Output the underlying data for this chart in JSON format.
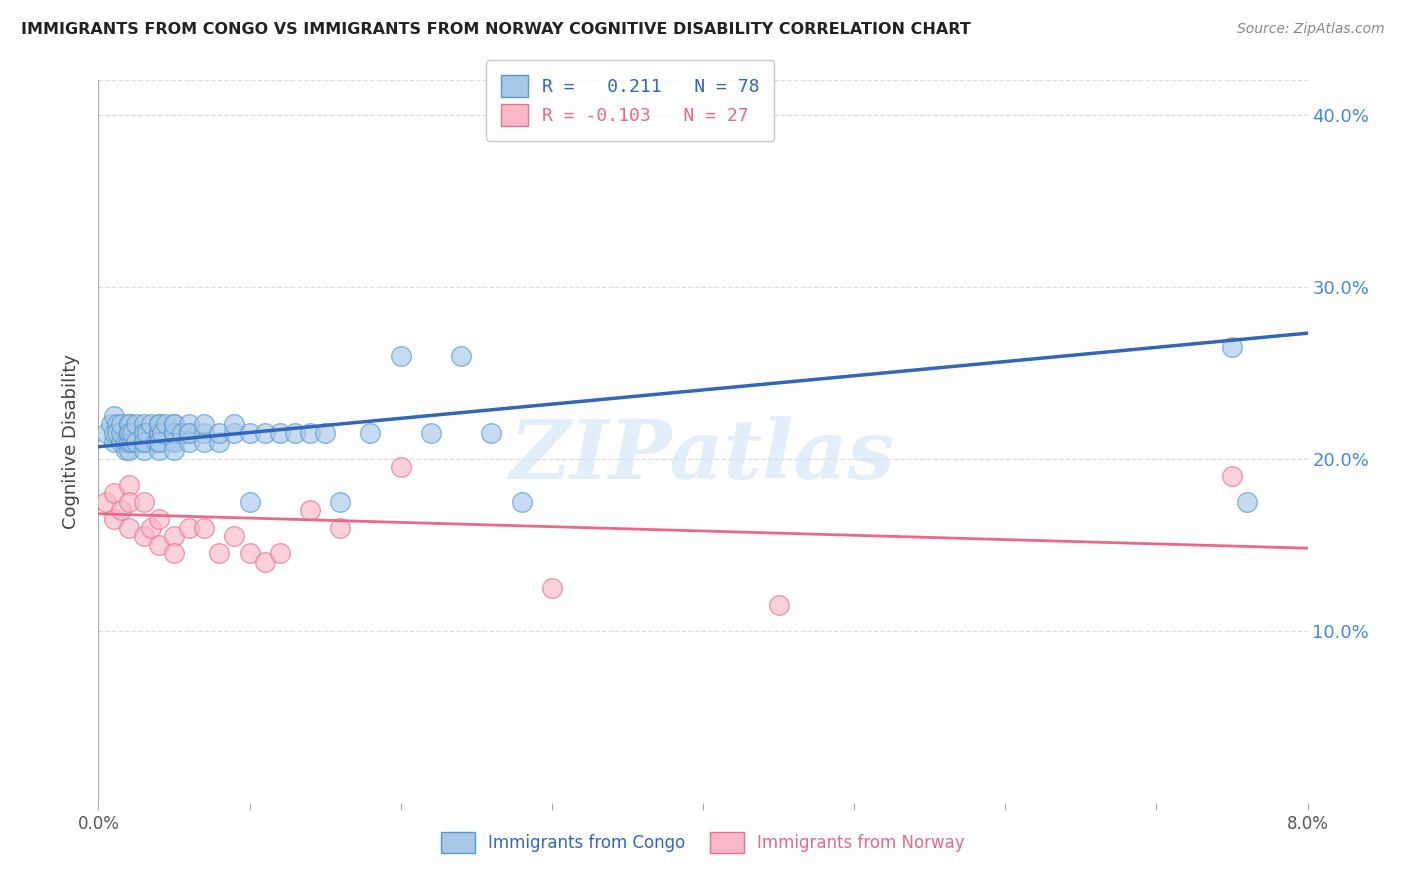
{
  "title": "IMMIGRANTS FROM CONGO VS IMMIGRANTS FROM NORWAY COGNITIVE DISABILITY CORRELATION CHART",
  "source": "Source: ZipAtlas.com",
  "ylabel": "Cognitive Disability",
  "x_min": 0.0,
  "x_max": 0.08,
  "y_min": 0.0,
  "y_max": 0.42,
  "x_ticks": [
    0.0,
    0.01,
    0.02,
    0.03,
    0.04,
    0.05,
    0.06,
    0.07,
    0.08
  ],
  "x_tick_labels_show": [
    "0.0%",
    "",
    "",
    "",
    "",
    "",
    "",
    "",
    "8.0%"
  ],
  "y_ticks_right": [
    0.1,
    0.2,
    0.3,
    0.4
  ],
  "y_tick_labels_right": [
    "10.0%",
    "20.0%",
    "30.0%",
    "40.0%"
  ],
  "congo_fill_color": "#a8c8e8",
  "congo_edge_color": "#5599cc",
  "norway_fill_color": "#f8b8c8",
  "norway_edge_color": "#e87090",
  "congo_line_color": "#3366bb",
  "norway_line_color": "#ee6688",
  "grid_color": "#dddddd",
  "background_color": "#ffffff",
  "right_tick_color": "#4488dd",
  "legend_line1": "R =   0.211   N = 78",
  "legend_line2": "R = -0.103   N = 27",
  "label_congo": "Immigrants from Congo",
  "label_norway": "Immigrants from Norway",
  "watermark": "ZIPatlas",
  "congo_line_x0": 0.0,
  "congo_line_y0": 0.207,
  "congo_line_x1": 0.08,
  "congo_line_y1": 0.273,
  "norway_line_x0": 0.0,
  "norway_line_y0": 0.168,
  "norway_line_x1": 0.08,
  "norway_line_y1": 0.148,
  "congo_x": [
    0.0005,
    0.0008,
    0.001,
    0.001,
    0.001,
    0.0012,
    0.0012,
    0.0015,
    0.0015,
    0.0015,
    0.0018,
    0.0018,
    0.002,
    0.002,
    0.002,
    0.002,
    0.002,
    0.002,
    0.002,
    0.002,
    0.0022,
    0.0022,
    0.0025,
    0.0025,
    0.003,
    0.003,
    0.003,
    0.003,
    0.003,
    0.003,
    0.0032,
    0.0035,
    0.0038,
    0.004,
    0.004,
    0.004,
    0.004,
    0.004,
    0.004,
    0.004,
    0.0042,
    0.0045,
    0.005,
    0.005,
    0.005,
    0.005,
    0.005,
    0.005,
    0.005,
    0.005,
    0.0055,
    0.006,
    0.006,
    0.006,
    0.006,
    0.007,
    0.007,
    0.007,
    0.008,
    0.008,
    0.009,
    0.009,
    0.01,
    0.01,
    0.011,
    0.012,
    0.013,
    0.014,
    0.015,
    0.016,
    0.018,
    0.02,
    0.022,
    0.024,
    0.026,
    0.028,
    0.075,
    0.076
  ],
  "congo_y": [
    0.215,
    0.22,
    0.21,
    0.225,
    0.215,
    0.22,
    0.215,
    0.21,
    0.215,
    0.22,
    0.205,
    0.21,
    0.215,
    0.21,
    0.22,
    0.205,
    0.215,
    0.21,
    0.22,
    0.215,
    0.21,
    0.215,
    0.22,
    0.21,
    0.215,
    0.22,
    0.205,
    0.21,
    0.215,
    0.21,
    0.215,
    0.22,
    0.21,
    0.215,
    0.22,
    0.21,
    0.215,
    0.205,
    0.22,
    0.21,
    0.215,
    0.22,
    0.215,
    0.21,
    0.22,
    0.215,
    0.21,
    0.215,
    0.205,
    0.22,
    0.215,
    0.215,
    0.22,
    0.21,
    0.215,
    0.215,
    0.21,
    0.22,
    0.21,
    0.215,
    0.215,
    0.22,
    0.215,
    0.175,
    0.215,
    0.215,
    0.215,
    0.215,
    0.215,
    0.175,
    0.215,
    0.26,
    0.215,
    0.26,
    0.215,
    0.175,
    0.265,
    0.175
  ],
  "norway_x": [
    0.0005,
    0.001,
    0.001,
    0.0015,
    0.002,
    0.002,
    0.002,
    0.003,
    0.003,
    0.0035,
    0.004,
    0.004,
    0.005,
    0.005,
    0.006,
    0.007,
    0.008,
    0.009,
    0.01,
    0.011,
    0.012,
    0.014,
    0.016,
    0.02,
    0.03,
    0.045,
    0.075
  ],
  "norway_y": [
    0.175,
    0.18,
    0.165,
    0.17,
    0.185,
    0.175,
    0.16,
    0.175,
    0.155,
    0.16,
    0.165,
    0.15,
    0.155,
    0.145,
    0.16,
    0.16,
    0.145,
    0.155,
    0.145,
    0.14,
    0.145,
    0.17,
    0.16,
    0.195,
    0.125,
    0.115,
    0.19
  ]
}
